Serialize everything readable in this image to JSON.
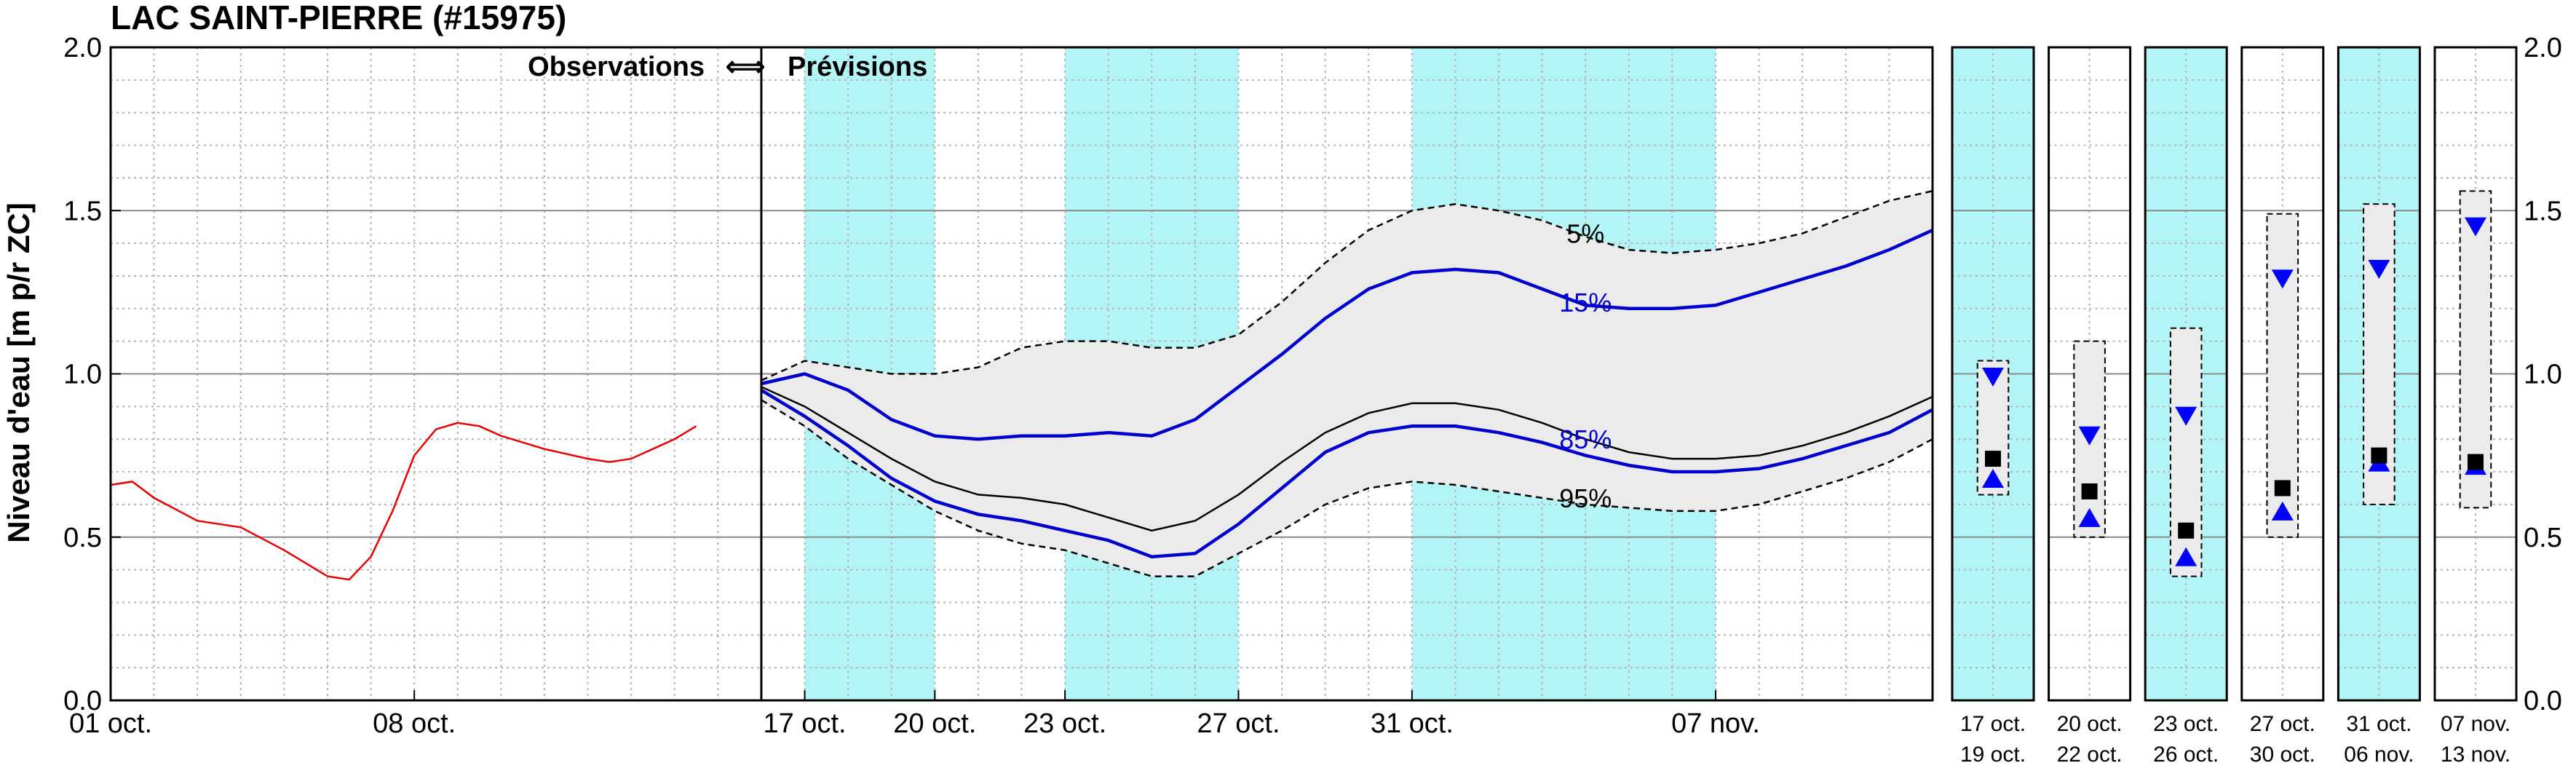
{
  "chart_data": {
    "type": "line",
    "title": "LAC SAINT-PIERRE (#15975)",
    "ylabel": "Niveau d'eau [m p/r ZC]",
    "ylim": [
      0,
      2
    ],
    "yticks": [
      "0.0",
      "0.5",
      "1.0",
      "1.5",
      "2.0"
    ],
    "grid": true,
    "annotation": {
      "left": "Observations",
      "arrow": "⟺",
      "right": "Prévisions"
    },
    "main_x_range": [
      "2024-10-01",
      "2024-11-12"
    ],
    "observation_end": "2024-10-15",
    "forecast_start": "2024-10-16",
    "observation_ticks": [
      {
        "date": "2024-10-01",
        "label": "01 oct."
      },
      {
        "date": "2024-10-08",
        "label": "08 oct."
      }
    ],
    "forecast_ticks": [
      {
        "date": "2024-10-17",
        "label": "17 oct."
      },
      {
        "date": "2024-10-20",
        "label": "20 oct."
      },
      {
        "date": "2024-10-23",
        "label": "23 oct."
      },
      {
        "date": "2024-10-27",
        "label": "27 oct."
      },
      {
        "date": "2024-10-31",
        "label": "31 oct."
      },
      {
        "date": "2024-11-07",
        "label": "07 nov."
      }
    ],
    "shaded_periods": [
      [
        "2024-10-17",
        "2024-10-20"
      ],
      [
        "2024-10-23",
        "2024-10-27"
      ],
      [
        "2024-10-31",
        "2024-11-07"
      ]
    ],
    "observed": {
      "x": [
        "2024-10-01",
        "2024-10-01T12",
        "2024-10-02",
        "2024-10-03",
        "2024-10-03T12",
        "2024-10-04",
        "2024-10-05",
        "2024-10-06",
        "2024-10-06T12",
        "2024-10-07",
        "2024-10-07T12",
        "2024-10-08",
        "2024-10-08T12",
        "2024-10-09",
        "2024-10-09T12",
        "2024-10-10",
        "2024-10-11",
        "2024-10-12",
        "2024-10-12T12",
        "2024-10-13",
        "2024-10-13T12",
        "2024-10-14",
        "2024-10-14T12"
      ],
      "y": [
        0.66,
        0.67,
        0.62,
        0.55,
        0.54,
        0.53,
        0.46,
        0.38,
        0.37,
        0.44,
        0.58,
        0.75,
        0.83,
        0.85,
        0.84,
        0.81,
        0.77,
        0.74,
        0.73,
        0.74,
        0.77,
        0.8,
        0.84
      ]
    },
    "forecast_x": [
      "2024-10-16",
      "2024-10-17",
      "2024-10-18",
      "2024-10-19",
      "2024-10-20",
      "2024-10-21",
      "2024-10-22",
      "2024-10-23",
      "2024-10-24",
      "2024-10-25",
      "2024-10-26",
      "2024-10-27",
      "2024-10-28",
      "2024-10-29",
      "2024-10-30",
      "2024-10-31",
      "2024-11-01",
      "2024-11-02",
      "2024-11-03",
      "2024-11-04",
      "2024-11-05",
      "2024-11-06",
      "2024-11-07",
      "2024-11-08",
      "2024-11-09",
      "2024-11-10",
      "2024-11-11",
      "2024-11-12"
    ],
    "band": {
      "upper": [
        0.98,
        1.04,
        1.02,
        1.0,
        1.0,
        1.02,
        1.08,
        1.1,
        1.1,
        1.08,
        1.08,
        1.12,
        1.22,
        1.34,
        1.44,
        1.5,
        1.52,
        1.5,
        1.47,
        1.42,
        1.38,
        1.37,
        1.38,
        1.4,
        1.43,
        1.48,
        1.53,
        1.56
      ],
      "lower": [
        0.92,
        0.84,
        0.74,
        0.66,
        0.58,
        0.52,
        0.48,
        0.46,
        0.42,
        0.38,
        0.38,
        0.45,
        0.52,
        0.6,
        0.65,
        0.67,
        0.66,
        0.64,
        0.62,
        0.6,
        0.59,
        0.58,
        0.58,
        0.6,
        0.64,
        0.68,
        0.73,
        0.8
      ]
    },
    "series": [
      {
        "name": "5%",
        "style": "dashed",
        "color": "#000000",
        "label_at": "2024-11-04",
        "label_y": 1.43,
        "values": [
          0.98,
          1.04,
          1.02,
          1.0,
          1.0,
          1.02,
          1.08,
          1.1,
          1.1,
          1.08,
          1.08,
          1.12,
          1.22,
          1.34,
          1.44,
          1.5,
          1.52,
          1.5,
          1.47,
          1.42,
          1.38,
          1.37,
          1.38,
          1.4,
          1.43,
          1.48,
          1.53,
          1.56
        ]
      },
      {
        "name": "15%",
        "style": "solid",
        "color": "#0000cc",
        "label_at": "2024-11-04",
        "label_y": 1.22,
        "values": [
          0.97,
          1.0,
          0.95,
          0.86,
          0.81,
          0.8,
          0.81,
          0.81,
          0.82,
          0.81,
          0.86,
          0.96,
          1.06,
          1.17,
          1.26,
          1.31,
          1.32,
          1.31,
          1.26,
          1.21,
          1.2,
          1.2,
          1.21,
          1.25,
          1.29,
          1.33,
          1.38,
          1.44
        ]
      },
      {
        "name": "",
        "style": "solid-thin",
        "color": "#000000",
        "values": [
          0.96,
          0.9,
          0.82,
          0.74,
          0.67,
          0.63,
          0.62,
          0.6,
          0.56,
          0.52,
          0.55,
          0.63,
          0.73,
          0.82,
          0.88,
          0.91,
          0.91,
          0.89,
          0.85,
          0.8,
          0.76,
          0.74,
          0.74,
          0.75,
          0.78,
          0.82,
          0.87,
          0.93
        ]
      },
      {
        "name": "85%",
        "style": "solid",
        "color": "#0000cc",
        "label_at": "2024-11-04",
        "label_y": 0.8,
        "values": [
          0.95,
          0.87,
          0.78,
          0.68,
          0.61,
          0.57,
          0.55,
          0.52,
          0.49,
          0.44,
          0.45,
          0.54,
          0.65,
          0.76,
          0.82,
          0.84,
          0.84,
          0.82,
          0.79,
          0.75,
          0.72,
          0.7,
          0.7,
          0.71,
          0.74,
          0.78,
          0.82,
          0.89
        ]
      },
      {
        "name": "95%",
        "style": "dashed",
        "color": "#000000",
        "label_at": "2024-11-04",
        "label_y": 0.62,
        "values": [
          0.92,
          0.84,
          0.74,
          0.66,
          0.58,
          0.52,
          0.48,
          0.46,
          0.42,
          0.38,
          0.38,
          0.45,
          0.52,
          0.6,
          0.65,
          0.67,
          0.66,
          0.64,
          0.62,
          0.6,
          0.59,
          0.58,
          0.58,
          0.6,
          0.64,
          0.68,
          0.73,
          0.8
        ]
      }
    ],
    "weekly_panels": [
      {
        "line1": "17 oct.",
        "line2": "19 oct.",
        "shaded": true,
        "min": 0.63,
        "max": 1.04,
        "median": 0.74,
        "low": 0.68,
        "high": 0.99
      },
      {
        "line1": "20 oct.",
        "line2": "22 oct.",
        "shaded": false,
        "min": 0.5,
        "max": 1.1,
        "median": 0.64,
        "low": 0.56,
        "high": 0.81
      },
      {
        "line1": "23 oct.",
        "line2": "26 oct.",
        "shaded": true,
        "min": 0.38,
        "max": 1.14,
        "median": 0.52,
        "low": 0.44,
        "high": 0.87
      },
      {
        "line1": "27 oct.",
        "line2": "30 oct.",
        "shaded": false,
        "min": 0.5,
        "max": 1.49,
        "median": 0.65,
        "low": 0.58,
        "high": 1.29
      },
      {
        "line1": "31 oct.",
        "line2": "06 nov.",
        "shaded": true,
        "min": 0.6,
        "max": 1.52,
        "median": 0.75,
        "low": 0.73,
        "high": 1.32
      },
      {
        "line1": "07 nov.",
        "line2": "13 nov.",
        "shaded": false,
        "min": 0.59,
        "max": 1.56,
        "median": 0.73,
        "low": 0.72,
        "high": 1.45
      }
    ],
    "colors": {
      "observed": "#e60000",
      "forecast_line": "#0000cc",
      "band_fill": "#ebebeb",
      "shade": "#b3f5f7",
      "marker_high": "#0000ff",
      "marker_low": "#0000ff",
      "marker_median": "#000000"
    }
  }
}
